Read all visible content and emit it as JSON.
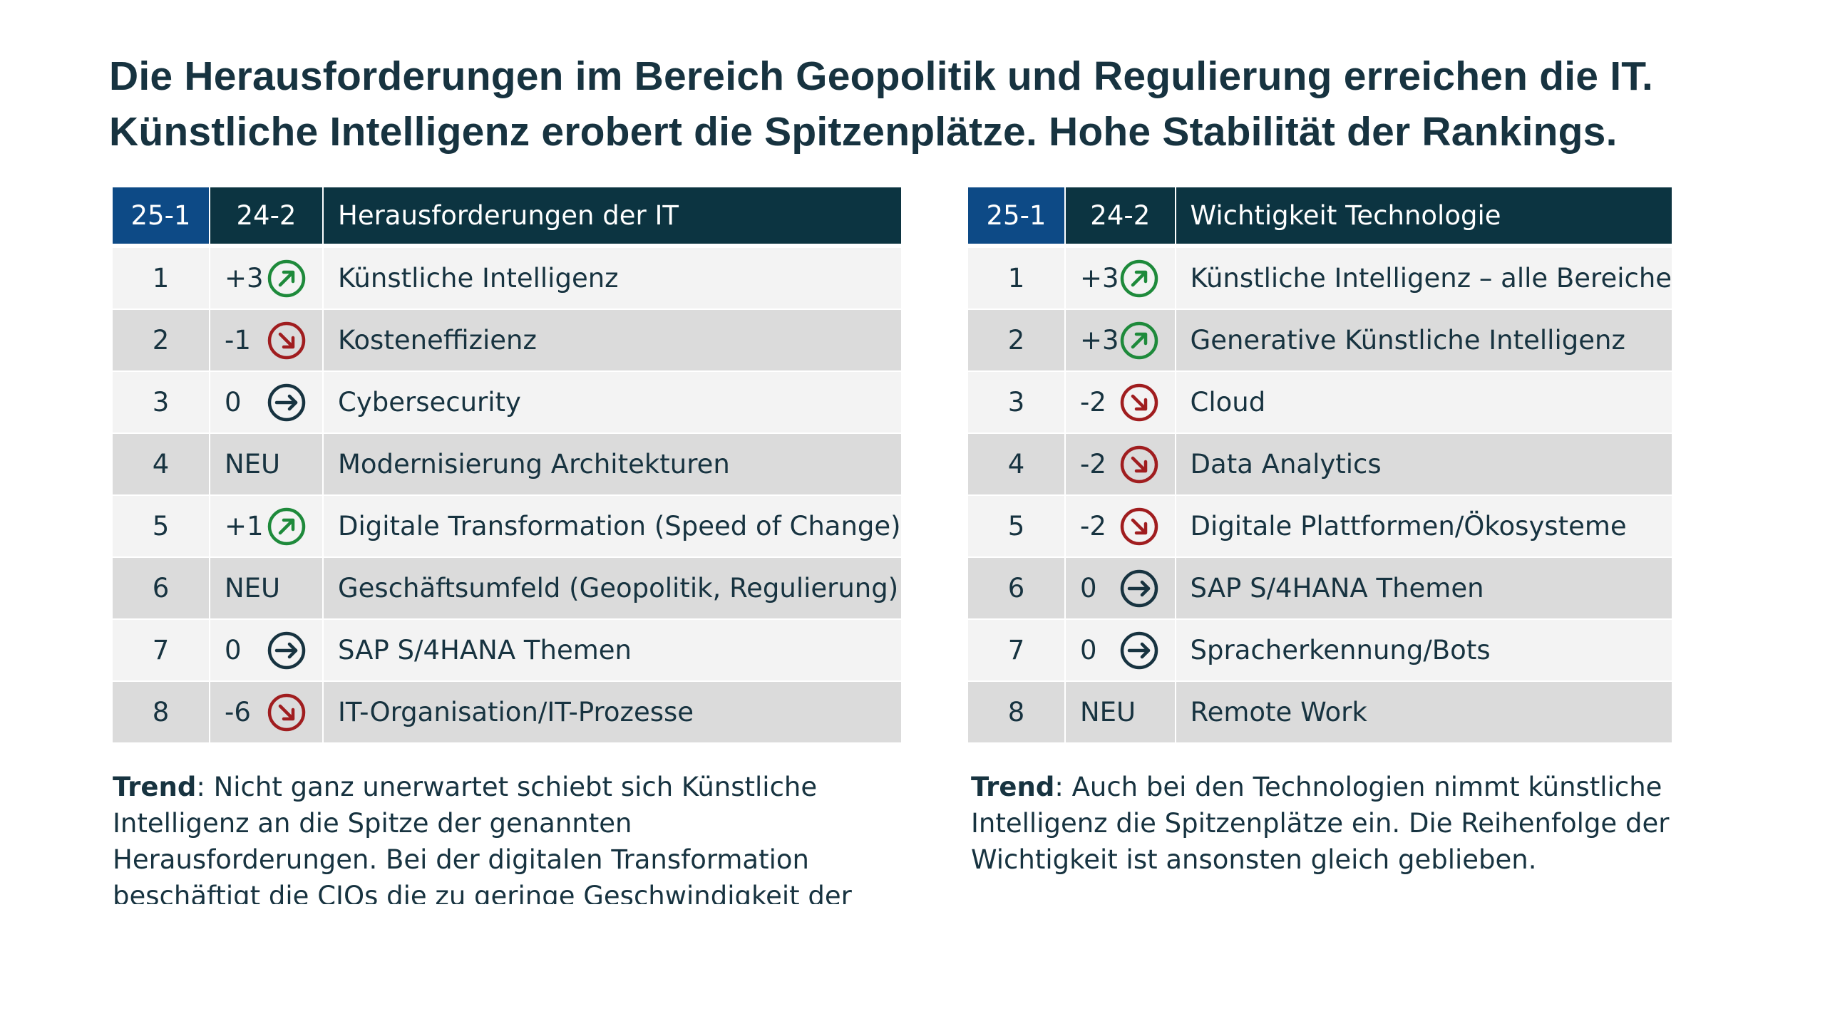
{
  "title": {
    "line1": "Die Herausforderungen im Bereich Geopolitik und Regulierung erreichen die IT.",
    "line2": "Künstliche Intelligenz erobert die Spitzenplätze. Hohe Stabilität der Rankings."
  },
  "colors": {
    "header_rank_bg": "#0d4a86",
    "header_bg": "#0c3441",
    "row_light": "#f3f3f3",
    "row_dark": "#dbdbdb",
    "up": "#1e8a3b",
    "down": "#a01d1f",
    "same": "#173340"
  },
  "left_table": {
    "headers": [
      "25-1",
      "24-2",
      "Herausforderungen der IT"
    ],
    "rows": [
      {
        "rank": "1",
        "change": "+3",
        "trend": "up",
        "icon": "arrow-up-right-icon",
        "label": "Künstliche Intelligenz"
      },
      {
        "rank": "2",
        "change": "-1",
        "trend": "down",
        "icon": "arrow-down-right-icon",
        "label": "Kosteneffizienz"
      },
      {
        "rank": "3",
        "change": "0",
        "trend": "same",
        "icon": "arrow-right-icon",
        "label": "Cybersecurity"
      },
      {
        "rank": "4",
        "change": "NEU",
        "trend": "none",
        "icon": "",
        "label": "Modernisierung Architekturen"
      },
      {
        "rank": "5",
        "change": "+1",
        "trend": "up",
        "icon": "arrow-up-right-icon",
        "label": "Digitale Transformation (Speed of Change)"
      },
      {
        "rank": "6",
        "change": "NEU",
        "trend": "none",
        "icon": "",
        "label": "Geschäftsumfeld (Geopolitik, Regulierung)"
      },
      {
        "rank": "7",
        "change": "0",
        "trend": "same",
        "icon": "arrow-right-icon",
        "label": "SAP S/4HANA Themen"
      },
      {
        "rank": "8",
        "change": "-6",
        "trend": "down",
        "icon": "arrow-down-right-icon",
        "label": "IT-Organisation/IT-Prozesse"
      }
    ]
  },
  "right_table": {
    "headers": [
      "25-1",
      "24-2",
      "Wichtigkeit Technologie"
    ],
    "rows": [
      {
        "rank": "1",
        "change": "+3",
        "trend": "up",
        "icon": "arrow-up-right-icon",
        "label": "Künstliche Intelligenz – alle Bereiche"
      },
      {
        "rank": "2",
        "change": "+3",
        "trend": "up",
        "icon": "arrow-up-right-icon",
        "label": "Generative Künstliche Intelligenz"
      },
      {
        "rank": "3",
        "change": "-2",
        "trend": "down",
        "icon": "arrow-down-right-icon",
        "label": "Cloud"
      },
      {
        "rank": "4",
        "change": "-2",
        "trend": "down",
        "icon": "arrow-down-right-icon",
        "label": "Data Analytics"
      },
      {
        "rank": "5",
        "change": "-2",
        "trend": "down",
        "icon": "arrow-down-right-icon",
        "label": "Digitale Plattformen/Ökosysteme"
      },
      {
        "rank": "6",
        "change": "0",
        "trend": "same",
        "icon": "arrow-right-icon",
        "label": "SAP S/4HANA Themen"
      },
      {
        "rank": "7",
        "change": "0",
        "trend": "same",
        "icon": "arrow-right-icon",
        "label": "Spracherkennung/Bots"
      },
      {
        "rank": "8",
        "change": "NEU",
        "trend": "none",
        "icon": "",
        "label": "Remote Work"
      }
    ]
  },
  "trend_left": {
    "label": "Trend",
    "text": ": Nicht ganz unerwartet schiebt sich Künstliche Intelligenz an die Spitze der genannten Herausforderungen. Bei der digitalen Transformation beschäftigt die CIOs die zu geringe Geschwindigkeit der Transformation"
  },
  "trend_right": {
    "label": "Trend",
    "text": ": Auch bei den Technologien nimmt künstliche Intelligenz die Spitzenplätze ein. Die Reihenfolge der Wichtigkeit ist ansonsten gleich geblieben."
  }
}
